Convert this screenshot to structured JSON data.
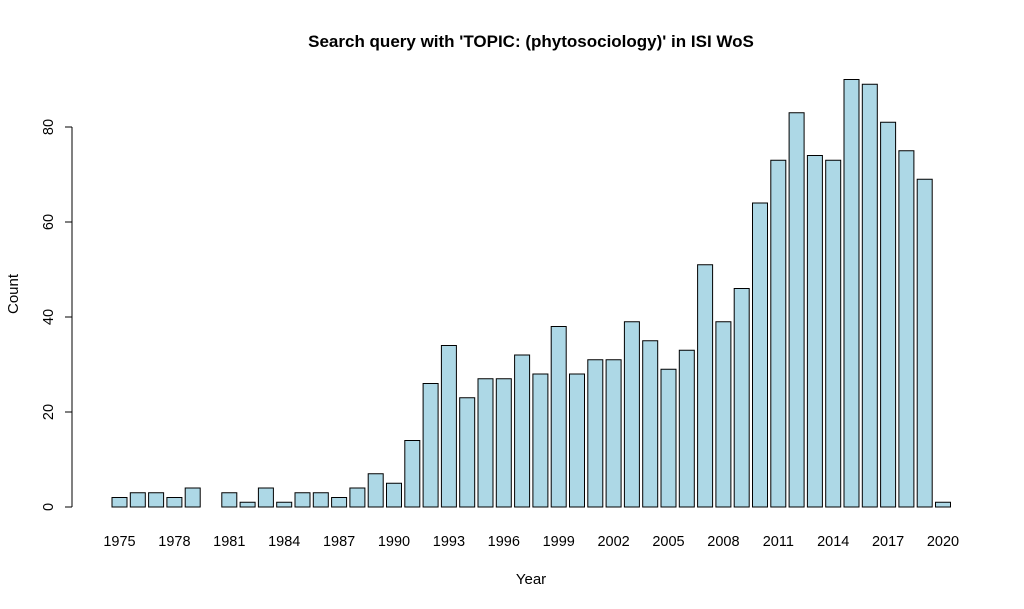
{
  "chart_data": {
    "type": "bar",
    "title": "Search query with 'TOPIC: (phytosociology)' in ISI WoS",
    "xlabel": "Year",
    "ylabel": "Count",
    "ylim": [
      0,
      90
    ],
    "y_ticks": [
      0,
      20,
      40,
      60,
      80
    ],
    "x_tick_labels": [
      "1975",
      "1978",
      "1981",
      "1984",
      "1987",
      "1990",
      "1993",
      "1996",
      "1999",
      "2002",
      "2005",
      "2008",
      "2011",
      "2014",
      "2017",
      "2020"
    ],
    "categories": [
      "1975",
      "1976",
      "1977",
      "1978",
      "1979",
      "1980",
      "1981",
      "1982",
      "1983",
      "1984",
      "1985",
      "1986",
      "1987",
      "1988",
      "1989",
      "1990",
      "1991",
      "1992",
      "1993",
      "1994",
      "1995",
      "1996",
      "1997",
      "1998",
      "1999",
      "2000",
      "2001",
      "2002",
      "2003",
      "2004",
      "2005",
      "2006",
      "2007",
      "2008",
      "2009",
      "2010",
      "2011",
      "2012",
      "2013",
      "2014",
      "2015",
      "2016",
      "2017",
      "2018",
      "2019",
      "2020"
    ],
    "values": [
      2,
      3,
      3,
      2,
      4,
      0,
      3,
      1,
      4,
      1,
      3,
      3,
      2,
      4,
      7,
      5,
      14,
      26,
      34,
      23,
      27,
      27,
      32,
      28,
      38,
      28,
      31,
      31,
      39,
      35,
      29,
      33,
      51,
      39,
      46,
      64,
      73,
      83,
      74,
      73,
      90,
      89,
      81,
      75,
      69,
      1
    ],
    "bar_fill": "#add8e6",
    "bar_stroke": "#000000",
    "grid": false
  }
}
